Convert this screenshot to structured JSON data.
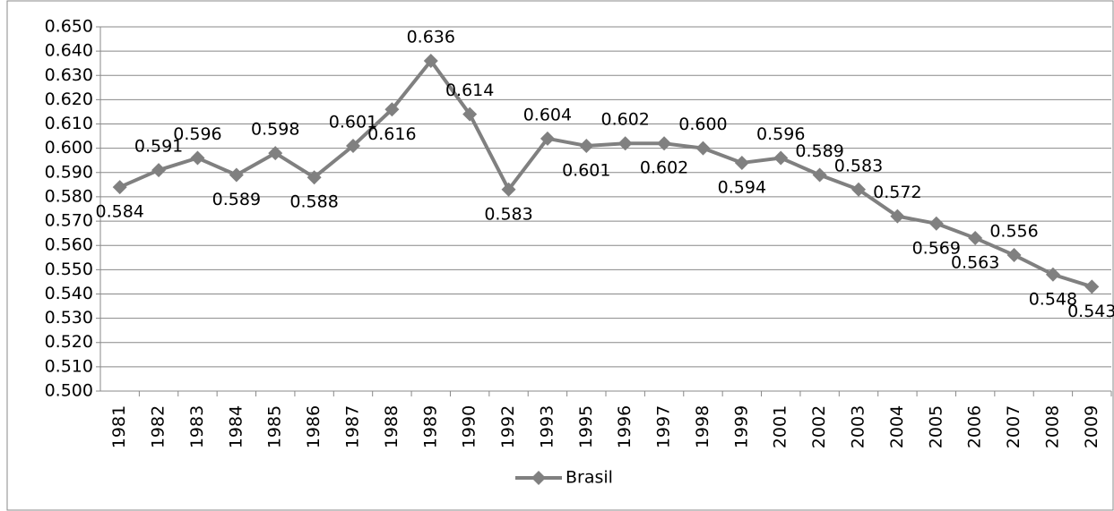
{
  "chart_data": {
    "type": "line",
    "categories": [
      "1981",
      "1982",
      "1983",
      "1984",
      "1985",
      "1986",
      "1987",
      "1988",
      "1989",
      "1990",
      "1992",
      "1993",
      "1995",
      "1996",
      "1997",
      "1998",
      "1999",
      "2001",
      "2002",
      "2003",
      "2004",
      "2005",
      "2006",
      "2007",
      "2008",
      "2009"
    ],
    "series": [
      {
        "name": "Brasil",
        "color": "#808080",
        "values": [
          0.584,
          0.591,
          0.596,
          0.589,
          0.598,
          0.588,
          0.601,
          0.616,
          0.636,
          0.614,
          0.583,
          0.604,
          0.601,
          0.602,
          0.602,
          0.6,
          0.594,
          0.596,
          0.589,
          0.583,
          0.572,
          0.569,
          0.563,
          0.556,
          0.548,
          0.543
        ],
        "value_labels": [
          "0.584",
          "0.591",
          "0.596",
          "0.589",
          "0.598",
          "0.588",
          "0.601",
          "0.616",
          "0.636",
          "0.614",
          "0.583",
          "0.604",
          "0.601",
          "0.602",
          "0.602",
          "0.600",
          "0.594",
          "0.596",
          "0.589",
          "0.583",
          "0.572",
          "0.569",
          "0.563",
          "0.556",
          "0.548",
          "0.543"
        ]
      }
    ],
    "ylim": [
      0.5,
      0.65
    ],
    "yticks": [
      {
        "value": 0.5,
        "label": "0.500"
      },
      {
        "value": 0.51,
        "label": "0.510"
      },
      {
        "value": 0.52,
        "label": "0.520"
      },
      {
        "value": 0.53,
        "label": "0.530"
      },
      {
        "value": 0.54,
        "label": "0.540"
      },
      {
        "value": 0.55,
        "label": "0.550"
      },
      {
        "value": 0.56,
        "label": "0.560"
      },
      {
        "value": 0.57,
        "label": "0.570"
      },
      {
        "value": 0.58,
        "label": "0.580"
      },
      {
        "value": 0.59,
        "label": "0.590"
      },
      {
        "value": 0.6,
        "label": "0.600"
      },
      {
        "value": 0.61,
        "label": "0.610"
      },
      {
        "value": 0.62,
        "label": "0.620"
      },
      {
        "value": 0.63,
        "label": "0.630"
      },
      {
        "value": 0.64,
        "label": "0.640"
      },
      {
        "value": 0.65,
        "label": "0.650"
      }
    ],
    "grid": true,
    "legend": "bottom"
  }
}
